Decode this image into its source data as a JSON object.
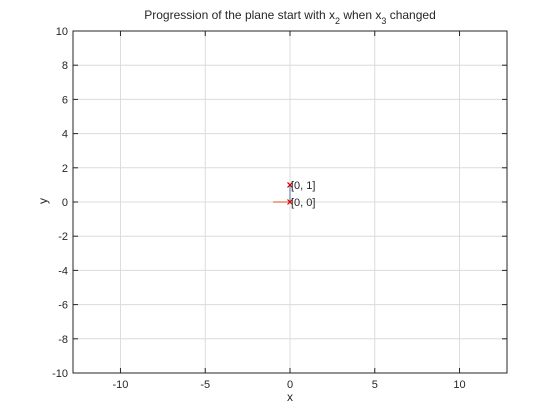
{
  "chart_data": {
    "type": "scatter",
    "title_main": "Progression of the plane start with x",
    "title_sub1": "2",
    "title_mid": " when x",
    "title_sub2": "3",
    "title_end": " changed",
    "xlabel": "x",
    "ylabel": "y",
    "xlim": [
      -12.8,
      12.8
    ],
    "ylim": [
      -10,
      10
    ],
    "xticks": [
      -10,
      -5,
      0,
      5,
      10
    ],
    "yticks": [
      -10,
      -8,
      -6,
      -4,
      -2,
      0,
      2,
      4,
      6,
      8,
      10
    ],
    "grid": true,
    "points": [
      {
        "x": 0,
        "y": 0,
        "label": "[0, 0]"
      },
      {
        "x": 0,
        "y": 1,
        "label": "[0, 1]"
      }
    ],
    "segments": [
      {
        "x1": -1,
        "y1": 0,
        "x2": 0,
        "y2": 0,
        "color": "#d95319"
      },
      {
        "x1": 0,
        "y1": 0,
        "x2": 0,
        "y2": 1,
        "color": "#4a6fa5"
      }
    ],
    "colors": {
      "marker": "#d40000",
      "grid": "#dcdcdc",
      "axis": "#262626"
    }
  }
}
